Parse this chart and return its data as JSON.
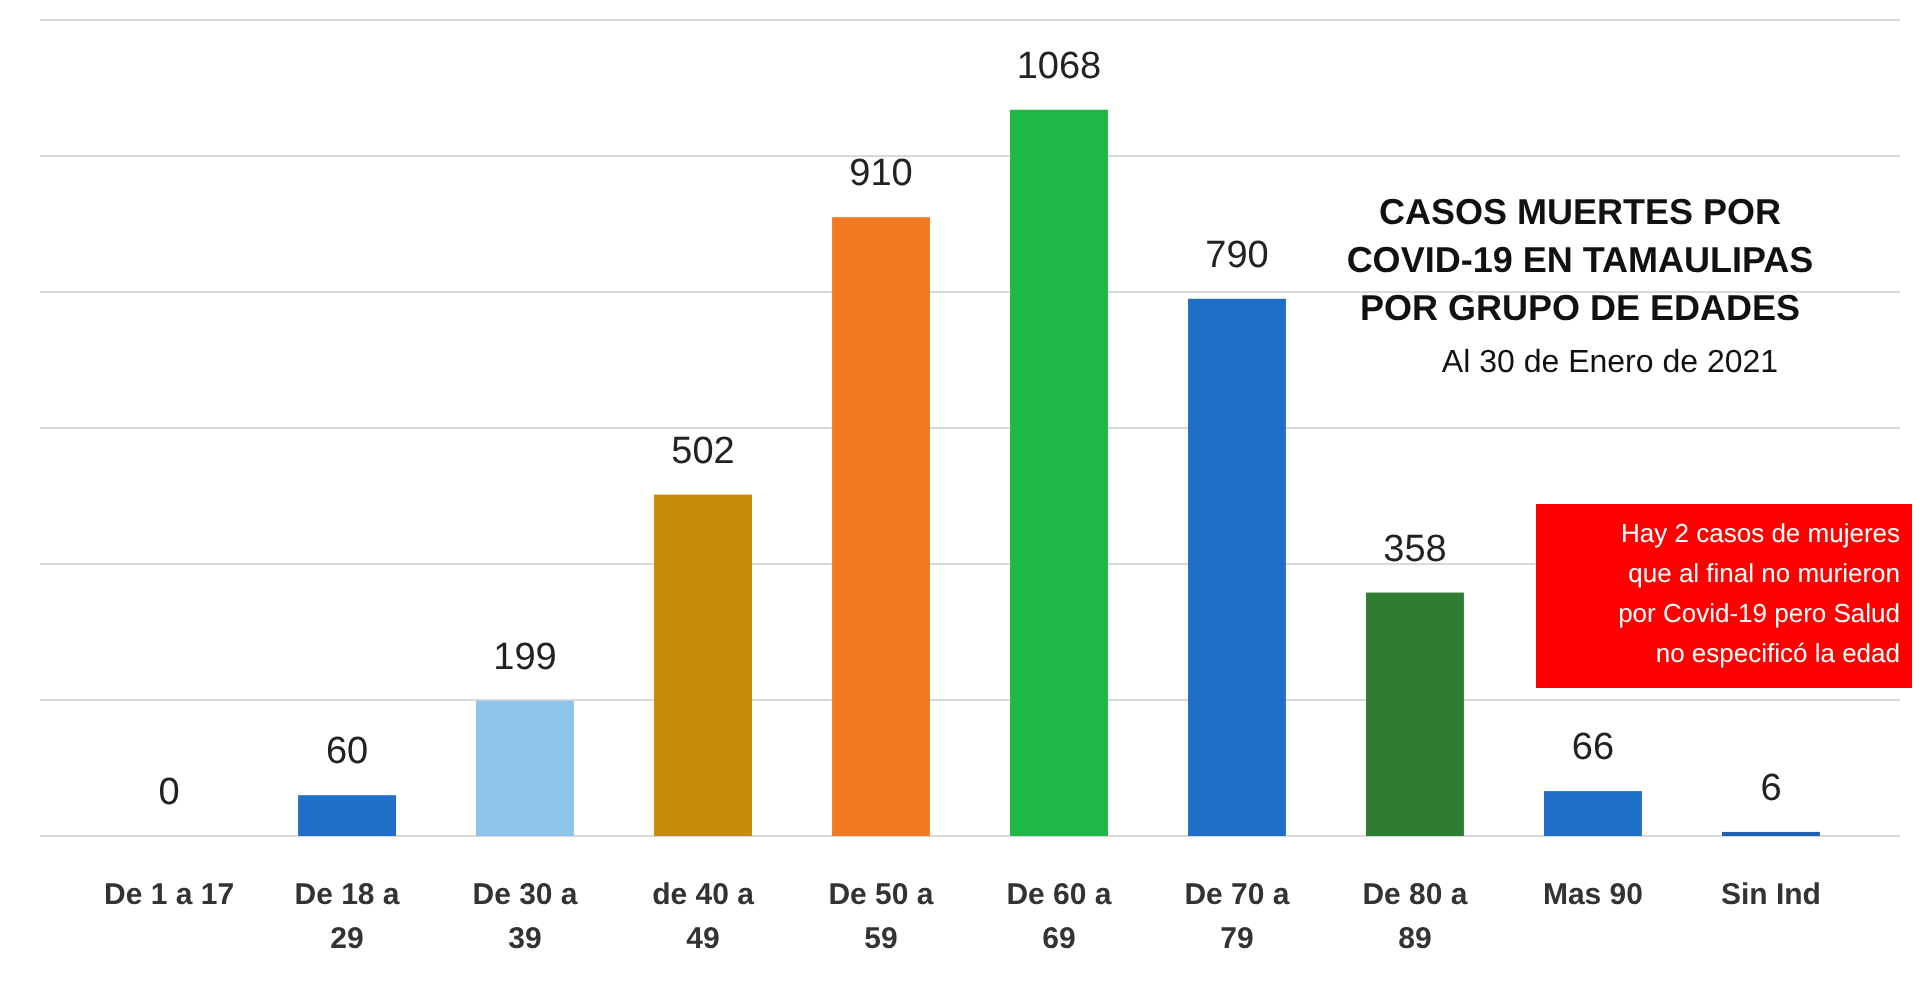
{
  "chart_data": {
    "type": "bar",
    "title": "CASOS MUERTES POR COVID-19 EN TAMAULIPAS POR GRUPO DE EDADES",
    "subtitle": "Al 30 de Enero de 2021",
    "categories": [
      "De 1 a 17",
      "De 18 a 29",
      "De 30 a 39",
      "de 40 a 49",
      "De 50 a 59",
      "De 60 a 69",
      "De 70 a 79",
      "De 80 a 89",
      "Mas 90",
      "Sin Ind"
    ],
    "values": [
      0,
      60,
      199,
      502,
      910,
      1068,
      790,
      358,
      66,
      6
    ],
    "colors": [
      "#1f5fb0",
      "#1f6fc8",
      "#8ec3ea",
      "#c88a0a",
      "#f47a20",
      "#1db845",
      "#1f6fc8",
      "#2e7d32",
      "#1f6fc8",
      "#1f5fb0"
    ],
    "ylim": [
      0,
      1200
    ],
    "yticks": [
      {
        "value": 0,
        "label": null
      },
      {
        "value": 200,
        "label": null
      },
      {
        "value": 400,
        "label": null
      },
      {
        "value": 600,
        "label": null
      },
      {
        "value": 800,
        "label": null
      },
      {
        "value": 1000,
        "label": null
      },
      {
        "value": 1200,
        "label": null
      }
    ],
    "grid": "y",
    "tick_labels": "x",
    "data_labels": true,
    "annotations": [
      "Hay 2 casos de mujeres que al final no murieron por Covid-19 pero Salud no especificó la edad"
    ]
  }
}
